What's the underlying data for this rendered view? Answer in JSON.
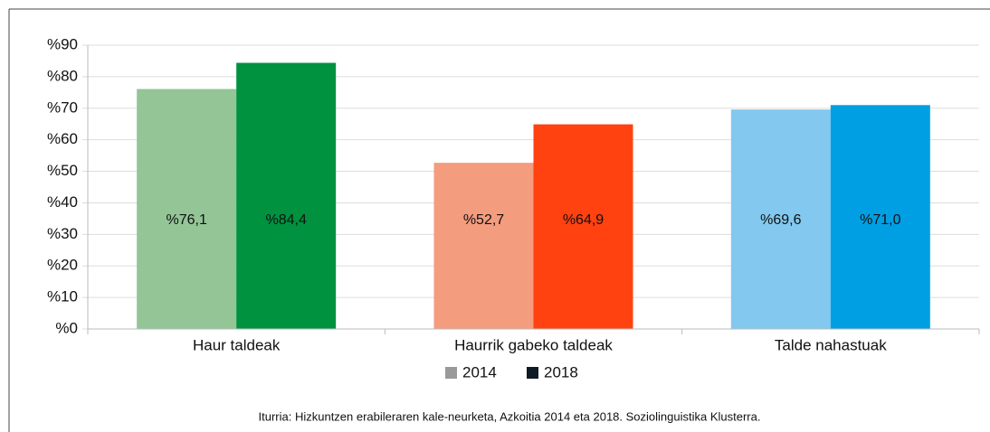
{
  "chart_data": {
    "type": "bar",
    "categories": [
      "Haur taldeak",
      "Haurrik gabeko taldeak",
      "Talde nahastuak"
    ],
    "series": [
      {
        "name": "2014",
        "color": "#999999",
        "colors": [
          "#93c596",
          "#f49c7e",
          "#82c8ef"
        ],
        "values": [
          76.1,
          52.7,
          69.6
        ],
        "value_labels": [
          "%76,1",
          "%52,7",
          "%69,6"
        ]
      },
      {
        "name": "2018",
        "color": "#0f1a24",
        "colors": [
          "#00923f",
          "#ff4210",
          "#009fe3"
        ],
        "values": [
          84.4,
          64.9,
          71.0
        ],
        "value_labels": [
          "%84,4",
          "%64,9",
          "%71,0"
        ]
      }
    ],
    "ylim": [
      0,
      90
    ],
    "yticks": [
      {
        "value": 0,
        "label": "%0"
      },
      {
        "value": 10,
        "label": "%10"
      },
      {
        "value": 20,
        "label": "%20"
      },
      {
        "value": 30,
        "label": "%30"
      },
      {
        "value": 40,
        "label": "%40"
      },
      {
        "value": 50,
        "label": "%50"
      },
      {
        "value": 60,
        "label": "%60"
      },
      {
        "value": 70,
        "label": "%70"
      },
      {
        "value": 80,
        "label": "%80"
      },
      {
        "value": 90,
        "label": "%90"
      }
    ],
    "grid": true,
    "legend": "bottom",
    "source": "Iturria: Hizkuntzen erabileraren kale-neurketa, Azkoitia 2014 eta 2018. Soziolinguistika Klusterra."
  }
}
